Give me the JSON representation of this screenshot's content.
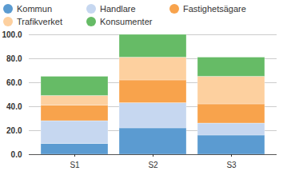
{
  "chart_data": {
    "type": "bar",
    "stacked": true,
    "grid": true,
    "legend": "top",
    "categories": [
      "S1",
      "S2",
      "S3"
    ],
    "series": [
      {
        "name": "Kommun",
        "color": "#5b9bd1",
        "values": [
          9,
          22,
          16
        ]
      },
      {
        "name": "Handlare",
        "color": "#c6d7f0",
        "values": [
          19,
          21,
          10
        ]
      },
      {
        "name": "Fastighetsägare",
        "color": "#f8a34c",
        "values": [
          13,
          19,
          16
        ]
      },
      {
        "name": "Trafikverket",
        "color": "#fdd09f",
        "values": [
          8,
          19,
          23
        ]
      },
      {
        "name": "Konsumenter",
        "color": "#66bb66",
        "values": [
          16,
          19,
          16
        ]
      }
    ],
    "ylim": [
      0,
      100
    ],
    "yticks": [
      {
        "value": 0,
        "label": "0.0"
      },
      {
        "value": 20,
        "label": "20.0"
      },
      {
        "value": 40,
        "label": "40.0"
      },
      {
        "value": 60,
        "label": "60.0"
      },
      {
        "value": 80,
        "label": "80.0"
      },
      {
        "value": 100,
        "label": "100.0"
      }
    ]
  }
}
